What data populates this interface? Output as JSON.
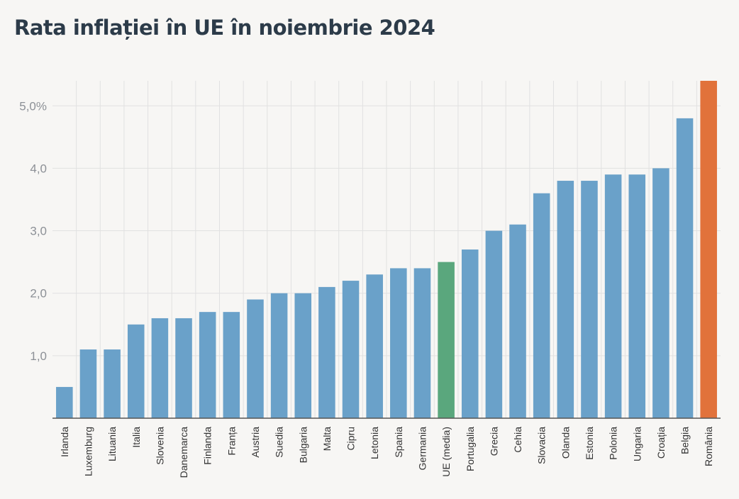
{
  "chart_data": {
    "type": "bar",
    "title": "Rata inflației în UE în noiembrie 2024",
    "categories": [
      "Irlanda",
      "Luxemburg",
      "Lituania",
      "Italia",
      "Slovenia",
      "Danemarca",
      "Finlanda",
      "Franța",
      "Austria",
      "Suedia",
      "Bulgaria",
      "Malta",
      "Cipru",
      "Letonia",
      "Spania",
      "Germania",
      "UE (media)",
      "Portugalia",
      "Grecia",
      "Cehia",
      "Slovacia",
      "Olanda",
      "Estonia",
      "Polonia",
      "Ungaria",
      "Croația",
      "Belgia",
      "România"
    ],
    "values": [
      0.5,
      1.1,
      1.1,
      1.5,
      1.6,
      1.6,
      1.7,
      1.7,
      1.9,
      2.0,
      2.0,
      2.1,
      2.2,
      2.3,
      2.4,
      2.4,
      2.5,
      2.7,
      3.0,
      3.1,
      3.6,
      3.8,
      3.8,
      3.9,
      3.9,
      4.0,
      4.8,
      5.4
    ],
    "ylim": [
      0,
      5.4
    ],
    "yticks": [
      1,
      2,
      3,
      4,
      5
    ],
    "ytick_labels": [
      "1,0",
      "2,0",
      "3,0",
      "4,0",
      "5,0%"
    ],
    "grid": true,
    "colors": {
      "default": "#6aa1c9",
      "highlight_average": "#5aa77d",
      "highlight_max": "#e1723b",
      "grid": "#e1e1e1",
      "axis": "#555555"
    },
    "highlight": {
      "UE (media)": "highlight_average",
      "România": "highlight_max"
    }
  }
}
